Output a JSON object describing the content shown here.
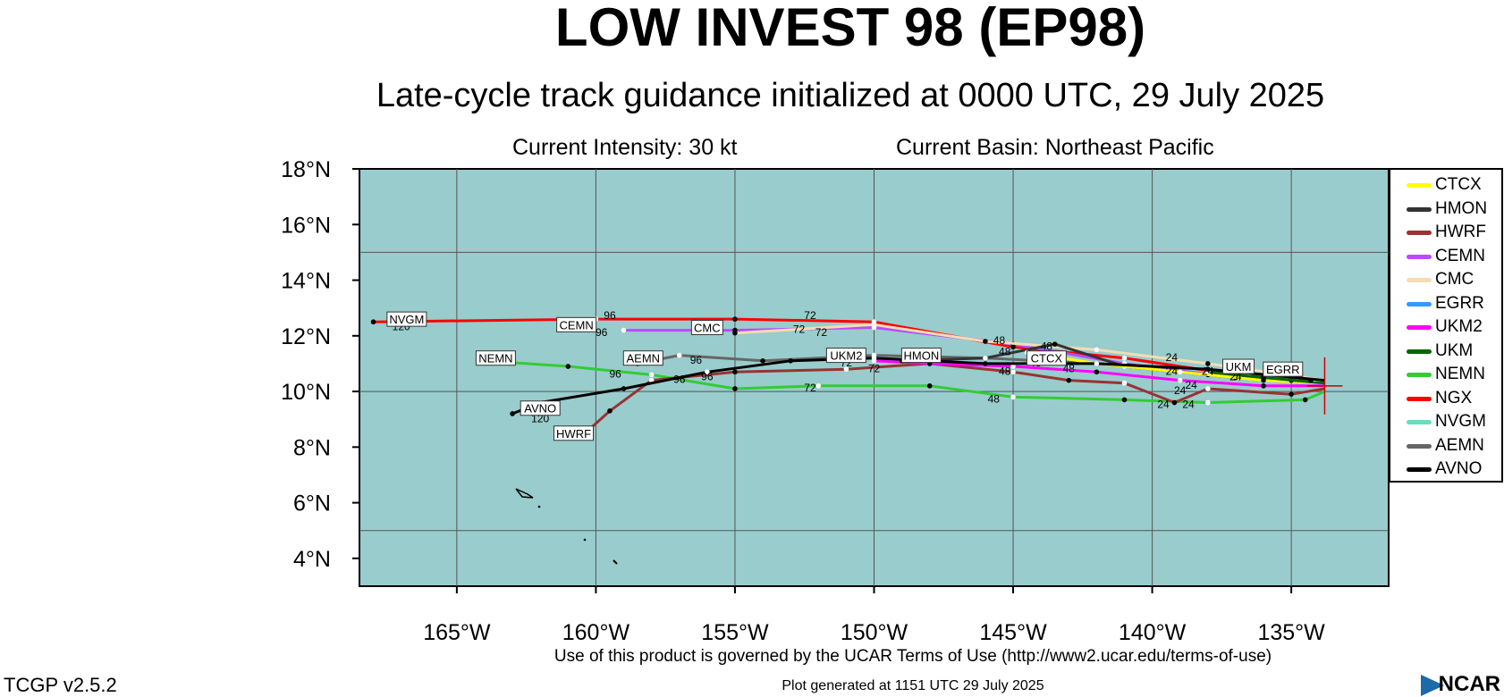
{
  "header": {
    "title": "LOW INVEST 98 (EP98)",
    "subtitle": "Late-cycle track guidance initialized at 0000 UTC, 29 July 2025",
    "intensity": "Current Intensity: 30 kt",
    "basin": "Current Basin: Northeast Pacific"
  },
  "map": {
    "lat_labels": [
      "18°N",
      "16°N",
      "14°N",
      "12°N",
      "10°N",
      "8°N",
      "6°N",
      "4°N"
    ],
    "lon_labels": [
      "165°W",
      "160°W",
      "155°W",
      "150°W",
      "145°W",
      "140°W",
      "135°W"
    ],
    "ocean_color": "#99cccc",
    "lat_range": [
      3,
      18
    ],
    "lon_range": [
      -168.5,
      -131.5
    ]
  },
  "legend": [
    {
      "name": "CTCX",
      "color": "#ffff00"
    },
    {
      "name": "HMON",
      "color": "#333333"
    },
    {
      "name": "HWRF",
      "color": "#993333"
    },
    {
      "name": "CEMN",
      "color": "#b84cff"
    },
    {
      "name": "CMC",
      "color": "#f5dcb4"
    },
    {
      "name": "EGRR",
      "color": "#3399ff"
    },
    {
      "name": "UKM2",
      "color": "#ff00ff"
    },
    {
      "name": "UKM",
      "color": "#006600"
    },
    {
      "name": "NEMN",
      "color": "#33cc33"
    },
    {
      "name": "NGX",
      "color": "#ff0000"
    },
    {
      "name": "NVGM",
      "color": "#66ddbb"
    },
    {
      "name": "AEMN",
      "color": "#666666"
    },
    {
      "name": "AVNO",
      "color": "#000000"
    }
  ],
  "track_labels": [
    "NVGM",
    "CEMN",
    "CMC",
    "NEMN",
    "AEMN",
    "AVNO",
    "HWRF",
    "UKM2",
    "HMON",
    "CTCX",
    "UKM",
    "EGRR"
  ],
  "tracks": [
    {
      "model": "NGX",
      "color": "#ff0000",
      "points": [
        [
          -133.8,
          10.3
        ],
        [
          -137,
          10.6
        ],
        [
          -141,
          11.2
        ],
        [
          -145,
          11.6
        ],
        [
          -150,
          12.5
        ],
        [
          -155,
          12.6
        ],
        [
          -160,
          12.6
        ],
        [
          -168,
          12.5
        ]
      ]
    },
    {
      "model": "CEMN",
      "color": "#b84cff",
      "points": [
        [
          -133.8,
          10.3
        ],
        [
          -137,
          10.5
        ],
        [
          -141,
          11.0
        ],
        [
          -145,
          11.7
        ],
        [
          -150,
          12.3
        ],
        [
          -155,
          12.2
        ],
        [
          -159,
          12.2
        ]
      ]
    },
    {
      "model": "CMC",
      "color": "#f5dcb4",
      "points": [
        [
          -133.8,
          10.4
        ],
        [
          -138,
          11.0
        ],
        [
          -142,
          11.5
        ],
        [
          -146,
          11.8
        ],
        [
          -150,
          12.4
        ],
        [
          -155,
          12.1
        ]
      ]
    },
    {
      "model": "NEMN",
      "color": "#33cc33",
      "points": [
        [
          -133.8,
          10.0
        ],
        [
          -134.5,
          9.7
        ],
        [
          -138,
          9.6
        ],
        [
          -141,
          9.7
        ],
        [
          -145,
          9.8
        ],
        [
          -148,
          10.2
        ],
        [
          -152,
          10.2
        ],
        [
          -155,
          10.1
        ],
        [
          -158,
          10.6
        ],
        [
          -161,
          10.9
        ],
        [
          -164,
          11.1
        ]
      ]
    },
    {
      "model": "HWRF",
      "color": "#993333",
      "points": [
        [
          -133.8,
          10.1
        ],
        [
          -135,
          9.9
        ],
        [
          -138,
          10.1
        ],
        [
          -139.2,
          9.6
        ],
        [
          -141,
          10.3
        ],
        [
          -143,
          10.4
        ],
        [
          -145,
          10.7
        ],
        [
          -148,
          11.0
        ],
        [
          -151,
          10.8
        ],
        [
          -155,
          10.7
        ],
        [
          -158,
          10.4
        ],
        [
          -159.5,
          9.3
        ],
        [
          -160.5,
          8.4
        ]
      ]
    },
    {
      "model": "AEMN",
      "color": "#666666",
      "points": [
        [
          -133.8,
          10.3
        ],
        [
          -138,
          10.6
        ],
        [
          -142,
          11.0
        ],
        [
          -146,
          11.2
        ],
        [
          -150,
          11.3
        ],
        [
          -154,
          11.1
        ],
        [
          -157,
          11.3
        ],
        [
          -158.5,
          11.0
        ]
      ]
    },
    {
      "model": "UKM2",
      "color": "#ff00ff",
      "points": [
        [
          -133.8,
          10.2
        ],
        [
          -136,
          10.2
        ],
        [
          -139,
          10.4
        ],
        [
          -142,
          10.7
        ],
        [
          -145,
          10.9
        ],
        [
          -148,
          11.0
        ],
        [
          -150,
          11.1
        ]
      ]
    },
    {
      "model": "HMON",
      "color": "#333333",
      "points": [
        [
          -133.8,
          10.3
        ],
        [
          -137,
          10.5
        ],
        [
          -141,
          10.9
        ],
        [
          -143.5,
          11.7
        ],
        [
          -146,
          11.2
        ],
        [
          -149,
          11.1
        ]
      ]
    },
    {
      "model": "CTCX",
      "color": "#ffff00",
      "points": [
        [
          -133.8,
          10.3
        ],
        [
          -136,
          10.4
        ],
        [
          -139,
          10.7
        ],
        [
          -142,
          11.0
        ],
        [
          -144.5,
          11.4
        ]
      ]
    },
    {
      "model": "EGRR",
      "color": "#3399ff",
      "points": [
        [
          -133.8,
          10.3
        ],
        [
          -135,
          10.4
        ],
        [
          -136.5,
          10.6
        ]
      ]
    },
    {
      "model": "UKM",
      "color": "#006600",
      "points": [
        [
          -133.8,
          10.3
        ],
        [
          -136,
          10.5
        ],
        [
          -138,
          10.7
        ]
      ]
    },
    {
      "model": "NVGM",
      "color": "#66ddbb",
      "points": [
        [
          -133.8,
          10.4
        ],
        [
          -134.3,
          10.4
        ]
      ]
    },
    {
      "model": "AVNO",
      "color": "#000000",
      "points": [
        [
          -133.8,
          10.4
        ],
        [
          -138,
          10.8
        ],
        [
          -142,
          11.0
        ],
        [
          -146,
          11.0
        ],
        [
          -150,
          11.2
        ],
        [
          -153,
          11.1
        ],
        [
          -156,
          10.7
        ],
        [
          -159,
          10.1
        ],
        [
          -162,
          9.6
        ],
        [
          -163,
          9.2
        ]
      ]
    }
  ],
  "hour_labels": [
    {
      "t": "24",
      "lon": -139.3,
      "lat": 11.1
    },
    {
      "t": "24",
      "lon": -139.3,
      "lat": 10.6
    },
    {
      "t": "24",
      "lon": -138.6,
      "lat": 10.1
    },
    {
      "t": "24",
      "lon": -139.6,
      "lat": 9.4
    },
    {
      "t": "24",
      "lon": -138.7,
      "lat": 9.4
    },
    {
      "t": "24",
      "lon": -138.0,
      "lat": 10.6
    },
    {
      "t": "24",
      "lon": -137.0,
      "lat": 10.4
    },
    {
      "t": "24",
      "lon": -139.0,
      "lat": 9.9
    },
    {
      "t": "48",
      "lon": -145.5,
      "lat": 11.7
    },
    {
      "t": "48",
      "lon": -145.3,
      "lat": 11.3
    },
    {
      "t": "48",
      "lon": -143.8,
      "lat": 11.5
    },
    {
      "t": "48",
      "lon": -145.3,
      "lat": 10.6
    },
    {
      "t": "48",
      "lon": -143.0,
      "lat": 10.7
    },
    {
      "t": "48",
      "lon": -145.7,
      "lat": 9.6
    },
    {
      "t": "48",
      "lon": -144.2,
      "lat": 10.9
    },
    {
      "t": "72",
      "lon": -152.3,
      "lat": 12.6
    },
    {
      "t": "72",
      "lon": -152.7,
      "lat": 12.1
    },
    {
      "t": "72",
      "lon": -151.9,
      "lat": 12.0
    },
    {
      "t": "72",
      "lon": -152.3,
      "lat": 10.0
    },
    {
      "t": "72",
      "lon": -151.0,
      "lat": 10.9
    },
    {
      "t": "72",
      "lon": -150.0,
      "lat": 10.7
    },
    {
      "t": "96",
      "lon": -159.5,
      "lat": 12.6
    },
    {
      "t": "96",
      "lon": -159.8,
      "lat": 12.0
    },
    {
      "t": "96",
      "lon": -159.3,
      "lat": 10.5
    },
    {
      "t": "96",
      "lon": -156.4,
      "lat": 11.0
    },
    {
      "t": "96",
      "lon": -157.0,
      "lat": 10.3
    },
    {
      "t": "96",
      "lon": -156.0,
      "lat": 10.4
    },
    {
      "t": "120",
      "lon": -167.0,
      "lat": 12.2
    },
    {
      "t": "120",
      "lon": -162.0,
      "lat": 8.9
    }
  ],
  "footer": {
    "terms": "Use of this product is governed by the UCAR Terms of Use (http://www2.ucar.edu/terms-of-use)",
    "generated": "Plot generated at 1151 UTC   29 July 2025",
    "version": "TCGP v2.5.2",
    "logo": "NCAR"
  }
}
